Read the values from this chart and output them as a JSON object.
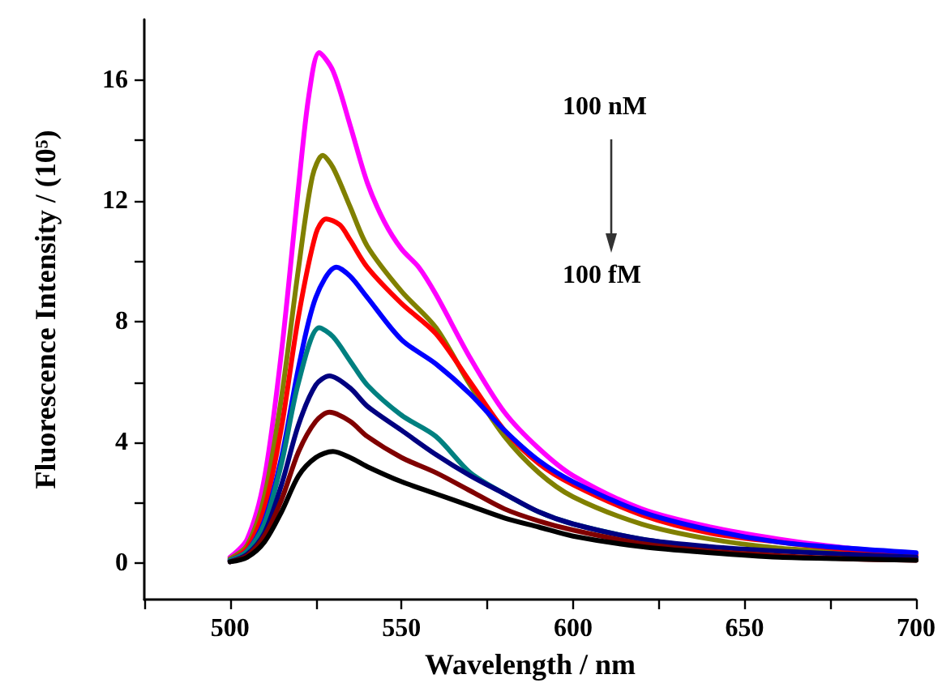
{
  "chart_data": {
    "type": "line",
    "xlabel": "Wavelength / nm",
    "ylabel": "Fluorescence Intensity / (10⁵)",
    "xlim": [
      475,
      700
    ],
    "ylim": [
      -1.2,
      18
    ],
    "xticks": [
      {
        "value": 475,
        "label": null
      },
      500,
      {
        "value": 525,
        "label": null
      },
      550,
      {
        "value": 575,
        "label": null
      },
      600,
      {
        "value": 625,
        "label": null
      },
      650,
      {
        "value": 675,
        "label": null
      },
      700
    ],
    "yticks": [
      0,
      {
        "value": 2,
        "label": null
      },
      4,
      {
        "value": 6,
        "label": null
      },
      8,
      {
        "value": 10,
        "label": null
      },
      12,
      {
        "value": 14,
        "label": null
      },
      16
    ],
    "grid": false,
    "marker": "none",
    "line_style": "solid",
    "annotations": [
      "100 nM",
      "100 fM"
    ],
    "series": [
      {
        "color": "#ff00ff",
        "x": [
          500,
          505,
          510,
          515,
          520,
          523,
          526,
          530,
          535,
          540,
          545,
          550,
          555,
          560,
          570,
          580,
          590,
          600,
          620,
          640,
          660,
          680,
          700
        ],
        "values": [
          0.2,
          0.8,
          2.8,
          7,
          12.5,
          15.5,
          16.9,
          16.3,
          14.5,
          12.6,
          11.3,
          10.4,
          9.8,
          8.9,
          6.8,
          5.0,
          3.8,
          2.9,
          1.8,
          1.2,
          0.8,
          0.5,
          0.3
        ]
      },
      {
        "color": "#808000",
        "x": [
          500,
          505,
          510,
          515,
          520,
          524,
          527,
          530,
          535,
          540,
          550,
          560,
          570,
          580,
          590,
          600,
          620,
          640,
          660,
          680,
          700
        ],
        "values": [
          0.15,
          0.6,
          2.2,
          5.5,
          9.8,
          12.8,
          13.5,
          13.1,
          11.8,
          10.5,
          9.0,
          7.8,
          5.9,
          4.2,
          3.0,
          2.2,
          1.3,
          0.8,
          0.5,
          0.35,
          0.2
        ]
      },
      {
        "color": "#ff0000",
        "x": [
          500,
          505,
          510,
          515,
          520,
          525,
          528,
          532,
          535,
          540,
          550,
          560,
          570,
          580,
          590,
          600,
          620,
          640,
          660,
          680,
          700
        ],
        "values": [
          0.1,
          0.5,
          1.8,
          4.5,
          8.2,
          10.9,
          11.4,
          11.2,
          10.7,
          9.8,
          8.6,
          7.6,
          6.0,
          4.4,
          3.3,
          2.6,
          1.6,
          1.0,
          0.7,
          0.45,
          0.3
        ]
      },
      {
        "color": "#0000ff",
        "x": [
          500,
          505,
          510,
          515,
          520,
          525,
          531,
          535,
          540,
          550,
          560,
          570,
          580,
          590,
          600,
          620,
          640,
          660,
          680,
          700
        ],
        "values": [
          0.1,
          0.4,
          1.4,
          3.5,
          6.5,
          8.8,
          9.8,
          9.5,
          8.8,
          7.4,
          6.6,
          5.6,
          4.4,
          3.4,
          2.7,
          1.7,
          1.1,
          0.7,
          0.5,
          0.35
        ]
      },
      {
        "color": "#008080",
        "x": [
          500,
          505,
          510,
          515,
          520,
          526,
          530,
          535,
          540,
          550,
          560,
          570,
          580,
          590,
          600,
          620,
          640
        ],
        "values": [
          0.1,
          0.4,
          1.3,
          3.3,
          6.0,
          7.8,
          7.5,
          6.7,
          5.9,
          4.9,
          4.2,
          3.0,
          2.3,
          1.7,
          1.3,
          0.8,
          0.5
        ]
      },
      {
        "color": "#000080",
        "x": [
          500,
          505,
          510,
          515,
          520,
          525,
          529,
          535,
          540,
          550,
          560,
          570,
          580,
          590,
          600,
          620,
          640,
          660,
          680,
          700
        ],
        "values": [
          0.05,
          0.3,
          1.0,
          2.6,
          4.6,
          5.9,
          6.2,
          5.8,
          5.2,
          4.4,
          3.6,
          2.9,
          2.3,
          1.7,
          1.3,
          0.8,
          0.55,
          0.4,
          0.3,
          0.2
        ]
      },
      {
        "color": "#800000",
        "x": [
          500,
          505,
          510,
          515,
          520,
          525,
          529,
          535,
          540,
          550,
          560,
          570,
          580,
          590,
          600,
          620,
          640,
          660,
          680,
          700
        ],
        "values": [
          0.05,
          0.25,
          0.9,
          2.1,
          3.7,
          4.7,
          5.0,
          4.7,
          4.2,
          3.5,
          3.0,
          2.4,
          1.8,
          1.4,
          1.1,
          0.65,
          0.4,
          0.25,
          0.15,
          0.1
        ]
      },
      {
        "color": "#000000",
        "x": [
          500,
          505,
          510,
          515,
          520,
          525,
          530,
          535,
          540,
          550,
          560,
          570,
          580,
          590,
          600,
          620,
          640,
          660,
          680,
          700
        ],
        "values": [
          0.05,
          0.2,
          0.7,
          1.7,
          2.9,
          3.5,
          3.7,
          3.5,
          3.2,
          2.7,
          2.3,
          1.9,
          1.5,
          1.2,
          0.9,
          0.55,
          0.35,
          0.2,
          0.15,
          0.1
        ]
      }
    ]
  }
}
